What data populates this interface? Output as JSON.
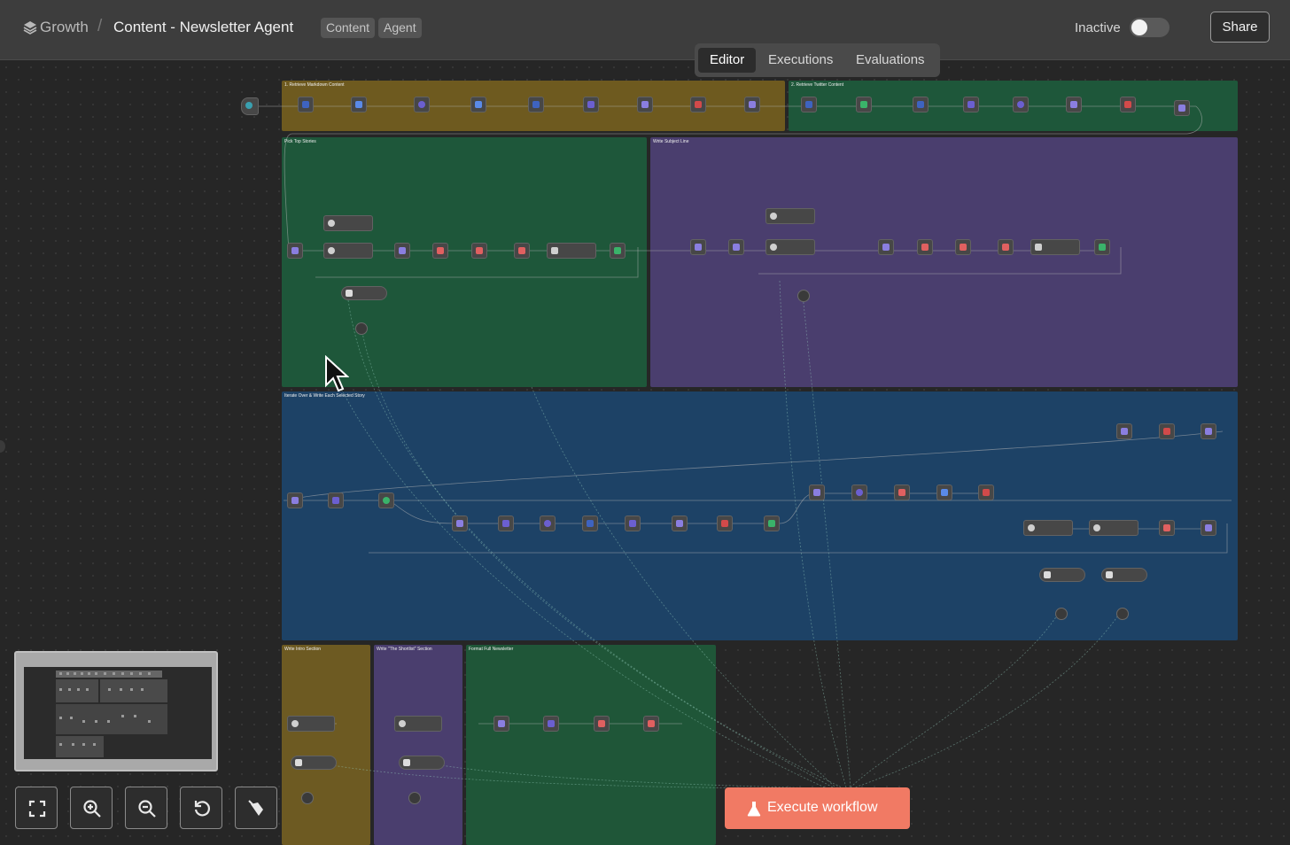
{
  "header": {
    "project": "Growth",
    "title": "Content - Newsletter Agent",
    "tags": [
      "Content",
      "Agent"
    ],
    "status_label": "Inactive",
    "share_label": "Share"
  },
  "tabs": [
    "Editor",
    "Executions",
    "Evaluations"
  ],
  "groups": {
    "retrieve_markdown": "1. Retrieve Markdown Content",
    "retrieve_twitter": "2. Retrieve Twitter Content",
    "pick_top_stories": "Pick Top Stories",
    "write_subject_line": "Write Subject Line",
    "iterate_stories": "Iterate Over & Write Each Selected Story",
    "write_intro": "Write Intro Section",
    "write_shortlist": "Write \"The Shortlist\" Section",
    "format_newsletter": "Format Full Newsletter"
  },
  "execute_label": "Execute workflow",
  "colors": {
    "accent": "#f17a64",
    "olive": "#6e5a1f",
    "green": "#1e573a",
    "purple": "#4a3e6e",
    "blue": "#1d4266"
  },
  "controls": [
    "fit-view-icon",
    "zoom-in-icon",
    "zoom-out-icon",
    "reset-zoom-icon",
    "tidy-up-icon"
  ]
}
